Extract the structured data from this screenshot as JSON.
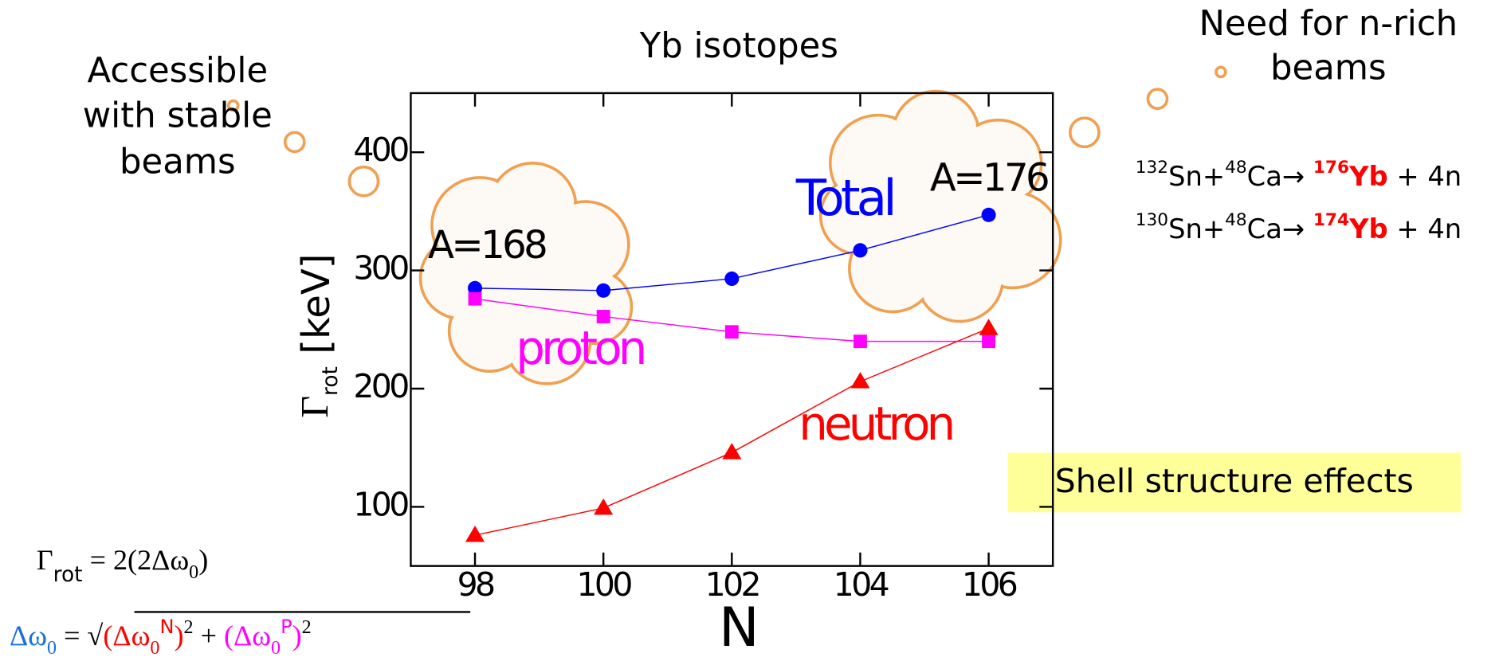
{
  "chart_data": {
    "type": "line",
    "title": "Yb isotopes",
    "xlabel": "N",
    "ylabel": {
      "symbol": "Γ",
      "subscript": "rot",
      "unit": "[keV]"
    },
    "x": [
      98,
      100,
      102,
      104,
      106
    ],
    "series": [
      {
        "name": "Total",
        "color": "#0000ff",
        "marker": "circle",
        "values": [
          285,
          283,
          293,
          317,
          347
        ]
      },
      {
        "name": "proton",
        "color": "#ff00ff",
        "marker": "square",
        "values": [
          276,
          261,
          248,
          240,
          240
        ]
      },
      {
        "name": "neutron",
        "color": "#ff0000",
        "marker": "triangle",
        "values": [
          76,
          99,
          146,
          206,
          251
        ]
      }
    ],
    "xlim": [
      97,
      107
    ],
    "ylim": [
      50,
      450
    ],
    "xticks": [
      98,
      100,
      102,
      104,
      106
    ],
    "yticks": [
      100,
      200,
      300,
      400
    ],
    "annotations": [
      "A=168",
      "A=176"
    ]
  },
  "left_note": [
    "Accessible",
    "with stable",
    "beams"
  ],
  "right_note": [
    "Need for n-rich",
    "beams"
  ],
  "reactions": [
    {
      "projectile_mass": "132",
      "projectile": "Sn+",
      "target_mass": "48",
      "target": "Ca→",
      "product_mass": "176",
      "product": "Yb",
      "rest": " + 4n"
    },
    {
      "projectile_mass": "130",
      "projectile": "Sn+",
      "target_mass": "48",
      "target": "Ca→",
      "product_mass": "174",
      "product": "Yb",
      "rest": " + 4n"
    }
  ],
  "callout": "Shell structure effects",
  "formulas": [
    [
      "Γ",
      "rot",
      " = 2(2Δω",
      "0",
      ")"
    ],
    [
      "Δω",
      "0",
      " = √",
      "(Δω",
      "0",
      "N",
      ")",
      "2",
      " + ",
      "(Δω",
      "0",
      "P",
      ")",
      "2"
    ]
  ]
}
